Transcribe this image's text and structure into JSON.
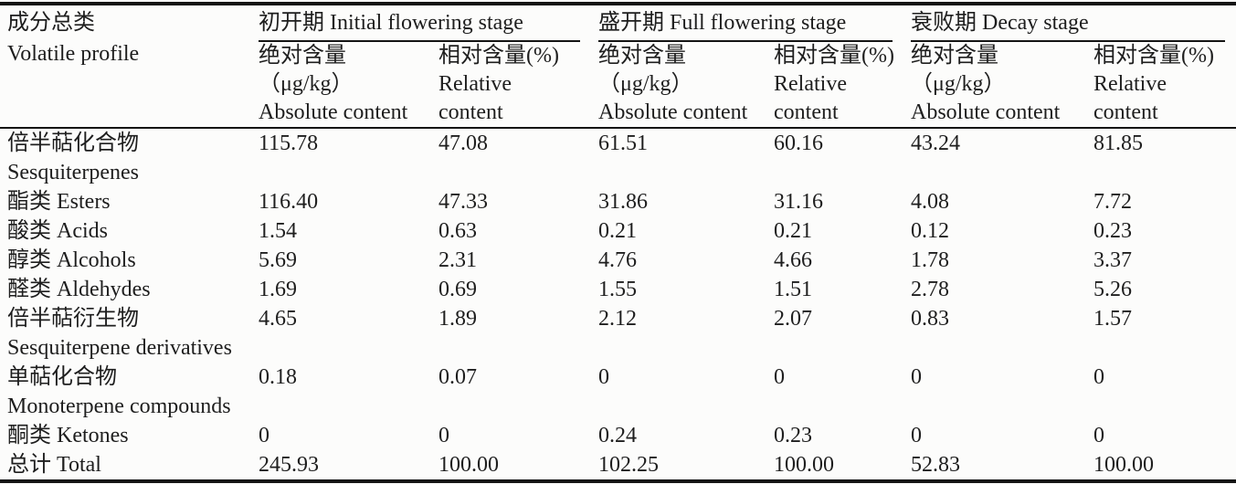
{
  "table": {
    "corner": {
      "zh": "成分总类",
      "en": "Volatile profile"
    },
    "stage_groups": [
      {
        "label": "初开期 Initial flowering stage"
      },
      {
        "label": "盛开期 Full flowering stage"
      },
      {
        "label": "衰败期 Decay stage"
      }
    ],
    "subcolumns": {
      "absolute": {
        "line1": "绝对含量",
        "line2": "（μg/kg）",
        "line3": "Absolute content"
      },
      "relative": {
        "line1": "相对含量(%)",
        "line2": "Relative",
        "line3": "content"
      }
    },
    "rows": [
      {
        "zh": "倍半萜化合物",
        "en": "Sesquiterpenes",
        "values": [
          "115.78",
          "47.08",
          "61.51",
          "60.16",
          "43.24",
          "81.85"
        ]
      },
      {
        "zh": "酯类 Esters",
        "en": "",
        "values": [
          "116.40",
          "47.33",
          "31.86",
          "31.16",
          "4.08",
          "7.72"
        ]
      },
      {
        "zh": "酸类 Acids",
        "en": "",
        "values": [
          "1.54",
          "0.63",
          "0.21",
          "0.21",
          "0.12",
          "0.23"
        ]
      },
      {
        "zh": "醇类 Alcohols",
        "en": "",
        "values": [
          "5.69",
          "2.31",
          "4.76",
          "4.66",
          "1.78",
          "3.37"
        ]
      },
      {
        "zh": "醛类 Aldehydes",
        "en": "",
        "values": [
          "1.69",
          "0.69",
          "1.55",
          "1.51",
          "2.78",
          "5.26"
        ]
      },
      {
        "zh": "倍半萜衍生物",
        "en": "Sesquiterpene derivatives",
        "values": [
          "4.65",
          "1.89",
          "2.12",
          "2.07",
          "0.83",
          "1.57"
        ]
      },
      {
        "zh": "单萜化合物",
        "en": "Monoterpene compounds",
        "values": [
          "0.18",
          "0.07",
          "0",
          "0",
          "0",
          "0"
        ]
      },
      {
        "zh": "酮类 Ketones",
        "en": "",
        "values": [
          "0",
          "0",
          "0.24",
          "0.23",
          "0",
          "0"
        ]
      },
      {
        "zh": "总计 Total",
        "en": "",
        "values": [
          "245.93",
          "100.00",
          "102.25",
          "100.00",
          "52.83",
          "100.00"
        ]
      }
    ],
    "colors": {
      "rule": "#141414",
      "text": "#1e1e1e",
      "background": "#fcfcfb"
    }
  }
}
